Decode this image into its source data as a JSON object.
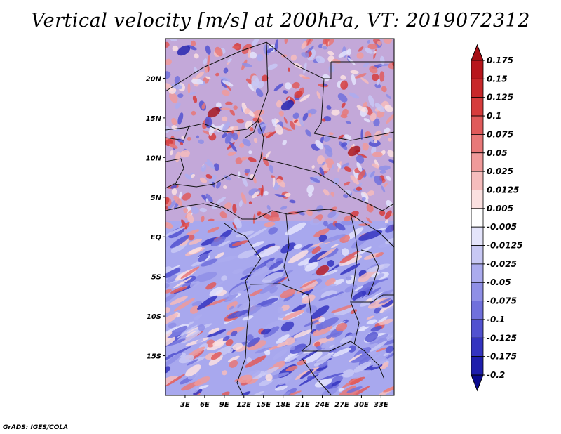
{
  "title": "Vertical velocity [m/s] at 200hPa, VT: 2019072312",
  "credit": "GrADS: IGES/COLA",
  "chart_data": {
    "type": "heatmap",
    "variable": "Vertical velocity",
    "units": "m/s",
    "level": "200hPa",
    "valid_time": "2019072312",
    "lon_range": [
      0,
      35
    ],
    "lat_range": [
      -20,
      25
    ],
    "x_ticks": [
      "3E",
      "6E",
      "9E",
      "12E",
      "15E",
      "18E",
      "21E",
      "24E",
      "27E",
      "30E",
      "33E"
    ],
    "x_tick_values": [
      3,
      6,
      9,
      12,
      15,
      18,
      21,
      24,
      27,
      30,
      33
    ],
    "y_ticks": [
      "20N",
      "15N",
      "10N",
      "5N",
      "EQ",
      "5S",
      "10S",
      "15S"
    ],
    "y_tick_values": [
      20,
      15,
      10,
      5,
      0,
      -5,
      -10,
      -15
    ],
    "colorbar_labels": [
      "0.175",
      "0.15",
      "0.125",
      "0.1",
      "0.075",
      "0.05",
      "0.025",
      "0.0125",
      "0.005",
      "-0.005",
      "-0.0125",
      "-0.025",
      "-0.05",
      "-0.075",
      "-0.1",
      "-0.125",
      "-0.175",
      "-0.2"
    ],
    "colorbar_colors": [
      "#a50f15",
      "#b8161c",
      "#c8282a",
      "#d63c3c",
      "#e05a5a",
      "#e87878",
      "#f09a9a",
      "#f6bcbc",
      "#fbe0e0",
      "#ffffff",
      "#e4e4fb",
      "#c8c8f4",
      "#ababee",
      "#8f8fe6",
      "#7070dc",
      "#5252d0",
      "#3434c0",
      "#1e1eac",
      "#0b0b8e"
    ],
    "colorbar_placement": "right"
  }
}
